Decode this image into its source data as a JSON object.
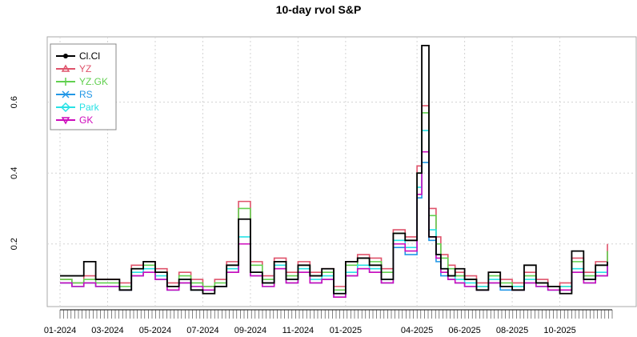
{
  "chart_data": {
    "type": "line",
    "title": "10-day rvol S&P",
    "xlabel": "",
    "ylabel": "",
    "ylim": [
      0.03,
      0.78
    ],
    "yticks": [
      0.2,
      0.4,
      0.6
    ],
    "ytick_labels": [
      "0.2",
      "0.4",
      "0.6"
    ],
    "xtick_labels": [
      "01-2024",
      "03-2024",
      "05-2024",
      "07-2024",
      "09-2024",
      "11-2024",
      "01-2025",
      "04-2025",
      "06-2025",
      "08-2025",
      "10-2025"
    ],
    "xtick_pos": [
      0,
      2,
      4,
      6,
      8,
      10,
      12,
      15,
      17,
      19,
      21
    ],
    "xlim": [
      0,
      23.2
    ],
    "grid": true,
    "legend_position": "top-left",
    "x": [
      0,
      0.5,
      1,
      1.5,
      2,
      2.5,
      3,
      3.5,
      4,
      4.5,
      5,
      5.5,
      6,
      6.5,
      7,
      7.5,
      8,
      8.5,
      9,
      9.5,
      10,
      10.5,
      11,
      11.5,
      12,
      12.5,
      13,
      13.5,
      14,
      14.5,
      15,
      15.2,
      15.5,
      15.8,
      16,
      16.3,
      16.6,
      17,
      17.5,
      18,
      18.5,
      19,
      19.5,
      20,
      20.5,
      21,
      21.5,
      22,
      22.5,
      23
    ],
    "series": [
      {
        "name": "Cl.Cl",
        "color": "#000000",
        "marker": "circle",
        "values": [
          0.11,
          0.11,
          0.15,
          0.1,
          0.1,
          0.07,
          0.13,
          0.15,
          0.12,
          0.08,
          0.1,
          0.07,
          0.06,
          0.08,
          0.14,
          0.27,
          0.12,
          0.09,
          0.15,
          0.1,
          0.14,
          0.11,
          0.13,
          0.06,
          0.15,
          0.16,
          0.14,
          0.1,
          0.23,
          0.21,
          0.4,
          0.76,
          0.22,
          0.17,
          0.13,
          0.11,
          0.13,
          0.1,
          0.07,
          0.12,
          0.08,
          0.07,
          0.14,
          0.09,
          0.08,
          0.06,
          0.18,
          0.1,
          0.14,
          0.15
        ]
      },
      {
        "name": "YZ",
        "color": "#DF536B",
        "marker": "triangle",
        "values": [
          0.1,
          0.09,
          0.11,
          0.1,
          0.1,
          0.09,
          0.14,
          0.15,
          0.13,
          0.09,
          0.12,
          0.1,
          0.08,
          0.1,
          0.15,
          0.32,
          0.15,
          0.11,
          0.16,
          0.12,
          0.15,
          0.12,
          0.13,
          0.08,
          0.15,
          0.17,
          0.16,
          0.13,
          0.24,
          0.22,
          0.42,
          0.59,
          0.3,
          0.22,
          0.17,
          0.14,
          0.12,
          0.11,
          0.09,
          0.12,
          0.1,
          0.09,
          0.12,
          0.1,
          0.08,
          0.09,
          0.16,
          0.12,
          0.15,
          0.2
        ]
      },
      {
        "name": "YZ.GK",
        "color": "#61D04F",
        "marker": "plus",
        "values": [
          0.1,
          0.09,
          0.1,
          0.09,
          0.09,
          0.08,
          0.13,
          0.14,
          0.12,
          0.08,
          0.11,
          0.09,
          0.08,
          0.09,
          0.14,
          0.3,
          0.14,
          0.1,
          0.15,
          0.11,
          0.14,
          0.11,
          0.12,
          0.07,
          0.14,
          0.16,
          0.15,
          0.12,
          0.23,
          0.21,
          0.4,
          0.57,
          0.28,
          0.2,
          0.16,
          0.13,
          0.11,
          0.1,
          0.08,
          0.11,
          0.09,
          0.08,
          0.11,
          0.09,
          0.08,
          0.08,
          0.15,
          0.11,
          0.14,
          0.18
        ]
      },
      {
        "name": "RS",
        "color": "#2297E6",
        "marker": "cross",
        "values": [
          0.09,
          0.08,
          0.09,
          0.08,
          0.08,
          0.07,
          0.11,
          0.12,
          0.1,
          0.07,
          0.09,
          0.07,
          0.07,
          0.08,
          0.12,
          0.2,
          0.11,
          0.08,
          0.13,
          0.09,
          0.12,
          0.09,
          0.1,
          0.05,
          0.11,
          0.13,
          0.12,
          0.09,
          0.19,
          0.17,
          0.33,
          0.43,
          0.21,
          0.15,
          0.11,
          0.1,
          0.09,
          0.08,
          0.07,
          0.09,
          0.07,
          0.07,
          0.09,
          0.08,
          0.07,
          0.07,
          0.12,
          0.09,
          0.11,
          0.14
        ]
      },
      {
        "name": "Park",
        "color": "#28E2E5",
        "marker": "diamond",
        "values": [
          0.09,
          0.08,
          0.09,
          0.08,
          0.08,
          0.07,
          0.12,
          0.13,
          0.11,
          0.07,
          0.1,
          0.08,
          0.07,
          0.08,
          0.13,
          0.22,
          0.12,
          0.09,
          0.14,
          0.1,
          0.13,
          0.1,
          0.11,
          0.06,
          0.12,
          0.14,
          0.13,
          0.1,
          0.21,
          0.19,
          0.36,
          0.52,
          0.24,
          0.17,
          0.13,
          0.11,
          0.1,
          0.09,
          0.08,
          0.1,
          0.08,
          0.08,
          0.1,
          0.08,
          0.07,
          0.08,
          0.13,
          0.1,
          0.12,
          0.15
        ]
      },
      {
        "name": "GK",
        "color": "#CD0BBC",
        "marker": "triangle-down",
        "values": [
          0.09,
          0.08,
          0.09,
          0.08,
          0.08,
          0.07,
          0.11,
          0.12,
          0.1,
          0.07,
          0.09,
          0.08,
          0.07,
          0.08,
          0.12,
          0.2,
          0.11,
          0.08,
          0.13,
          0.09,
          0.12,
          0.09,
          0.1,
          0.05,
          0.11,
          0.13,
          0.12,
          0.09,
          0.2,
          0.18,
          0.34,
          0.46,
          0.22,
          0.16,
          0.12,
          0.1,
          0.09,
          0.08,
          0.07,
          0.09,
          0.08,
          0.07,
          0.09,
          0.08,
          0.07,
          0.07,
          0.12,
          0.09,
          0.11,
          0.14
        ]
      }
    ]
  }
}
